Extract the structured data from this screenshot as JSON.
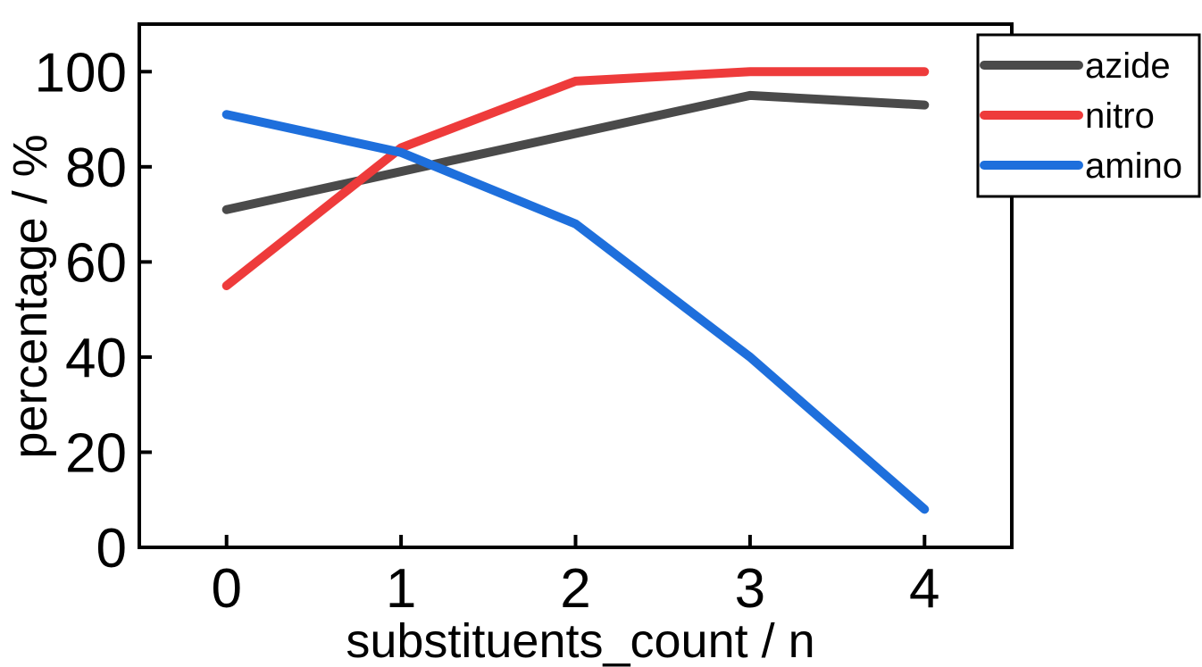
{
  "chart_data": {
    "type": "line",
    "title": "",
    "xlabel": "substituents_count / n",
    "ylabel": "percentage / %",
    "x": [
      0,
      1,
      2,
      3,
      4
    ],
    "xticks": [
      "0",
      "1",
      "2",
      "3",
      "4"
    ],
    "yticks": [
      "0",
      "20",
      "40",
      "60",
      "80",
      "100"
    ],
    "xlim": [
      -0.5,
      4.5
    ],
    "ylim": [
      0,
      110
    ],
    "grid": false,
    "legend_position": "top-right",
    "series": [
      {
        "name": "azide",
        "color": "#4a4a4a",
        "values": [
          71,
          79,
          87,
          95,
          93
        ]
      },
      {
        "name": "nitro",
        "color": "#ee3b3b",
        "values": [
          55,
          84,
          98,
          100,
          100
        ]
      },
      {
        "name": "amino",
        "color": "#1e6fdc",
        "values": [
          91,
          83,
          68,
          40,
          8
        ]
      }
    ]
  }
}
